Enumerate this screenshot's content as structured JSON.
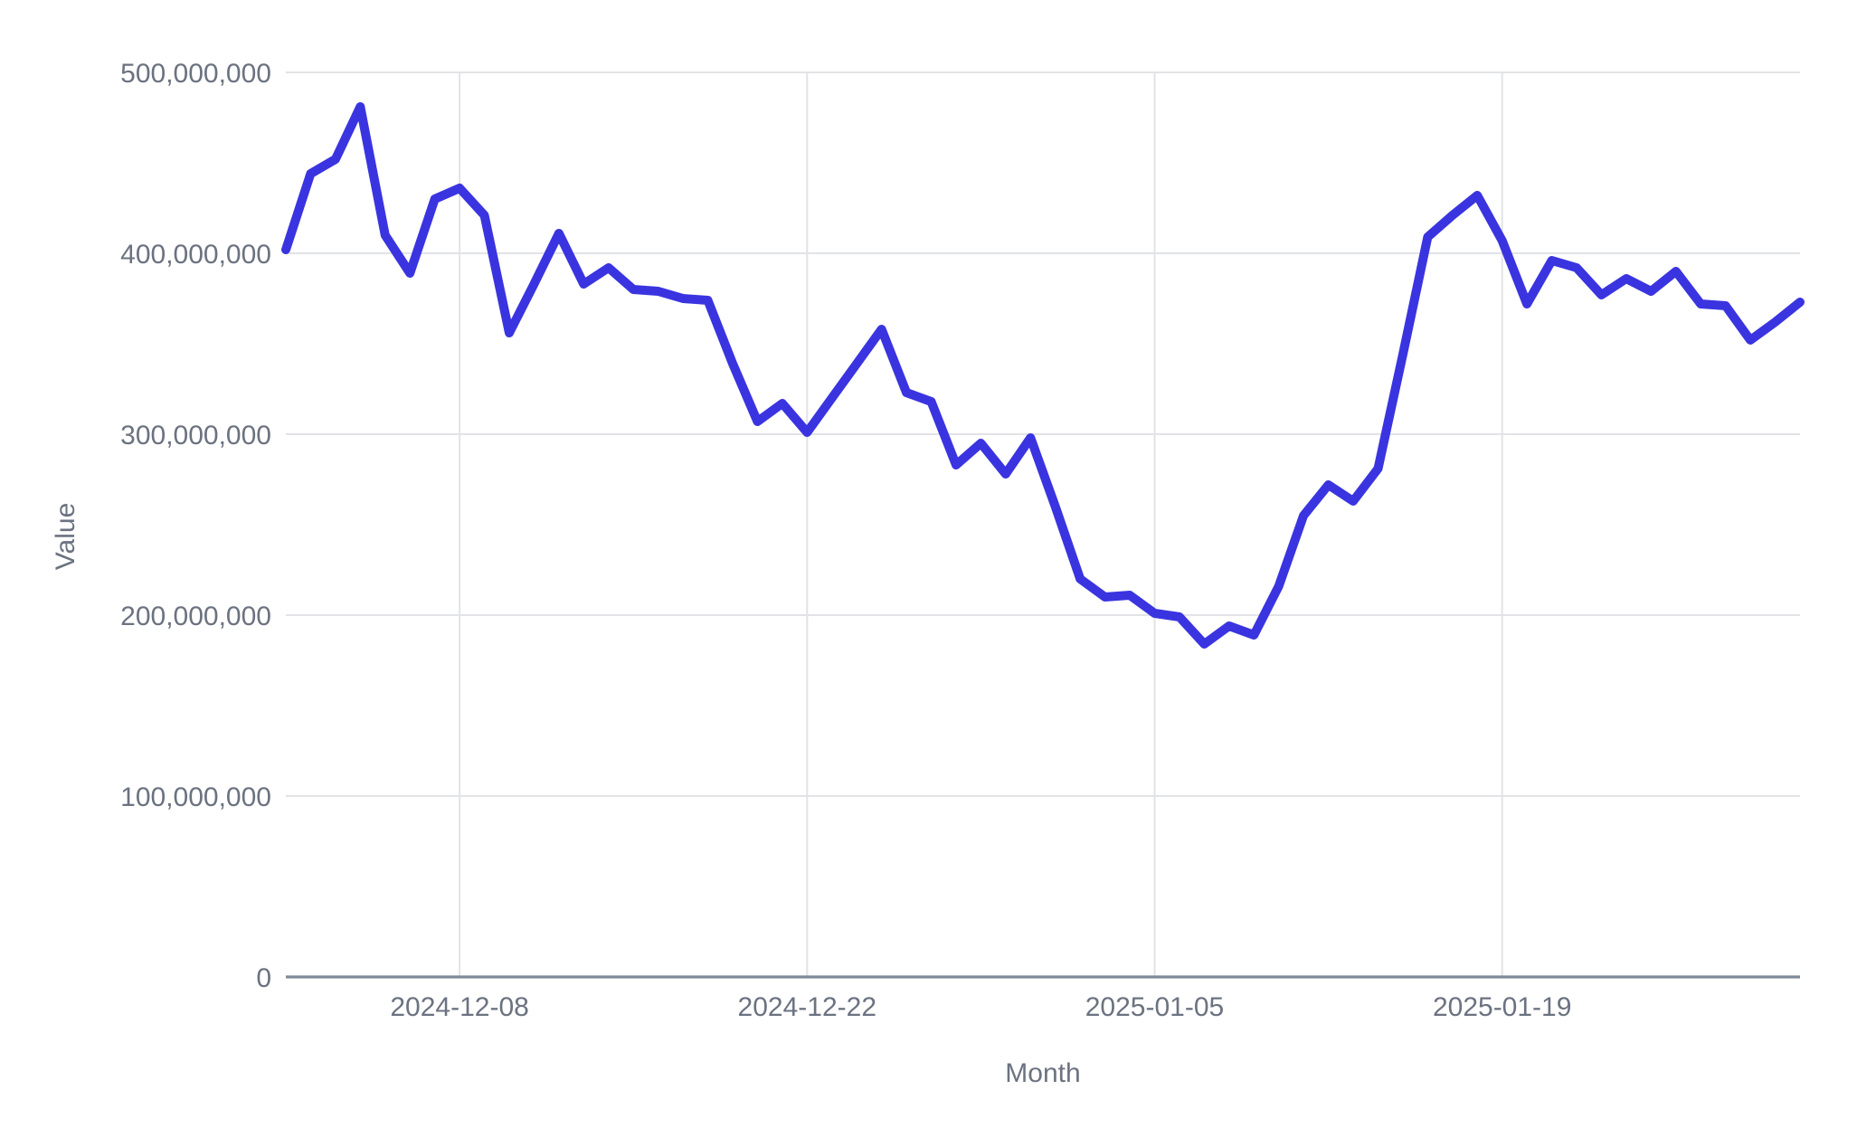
{
  "chart_data": {
    "type": "line",
    "title": "",
    "xlabel": "Month",
    "ylabel": "Value",
    "legend": "none",
    "grid": "on",
    "ylim": [
      0,
      500000000
    ],
    "y_ticks": [
      0,
      100000000,
      200000000,
      300000000,
      400000000,
      500000000
    ],
    "x_tick_labels": [
      "2024-12-08",
      "2024-12-22",
      "2025-01-05",
      "2025-01-19"
    ],
    "x_tick_indices": [
      7,
      21,
      35,
      49
    ],
    "line_color": "#3a34e0",
    "grid_color": "#e2e3e7",
    "axis_color": "#7f8b99",
    "label_color": "#6b7280",
    "x": [
      "2024-12-01",
      "2024-12-02",
      "2024-12-03",
      "2024-12-04",
      "2024-12-05",
      "2024-12-06",
      "2024-12-07",
      "2024-12-08",
      "2024-12-09",
      "2024-12-10",
      "2024-12-11",
      "2024-12-12",
      "2024-12-13",
      "2024-12-14",
      "2024-12-15",
      "2024-12-16",
      "2024-12-17",
      "2024-12-18",
      "2024-12-19",
      "2024-12-20",
      "2024-12-21",
      "2024-12-22",
      "2024-12-23",
      "2024-12-24",
      "2024-12-25",
      "2024-12-26",
      "2024-12-27",
      "2024-12-28",
      "2024-12-29",
      "2024-12-30",
      "2024-12-31",
      "2025-01-01",
      "2025-01-02",
      "2025-01-03",
      "2025-01-04",
      "2025-01-05",
      "2025-01-06",
      "2025-01-07",
      "2025-01-08",
      "2025-01-09",
      "2025-01-10",
      "2025-01-11",
      "2025-01-12",
      "2025-01-13",
      "2025-01-14",
      "2025-01-15",
      "2025-01-16",
      "2025-01-17",
      "2025-01-18",
      "2025-01-19",
      "2025-01-20",
      "2025-01-21",
      "2025-01-22",
      "2025-01-23",
      "2025-01-24",
      "2025-01-25",
      "2025-01-26",
      "2025-01-27",
      "2025-01-28",
      "2025-01-29",
      "2025-01-30",
      "2025-01-31"
    ],
    "values": [
      402000000,
      444000000,
      452000000,
      481000000,
      410000000,
      389000000,
      430000000,
      436000000,
      421000000,
      356000000,
      383000000,
      411000000,
      383000000,
      392000000,
      380000000,
      379000000,
      375000000,
      374000000,
      339000000,
      307000000,
      317000000,
      301000000,
      320000000,
      339000000,
      358000000,
      323000000,
      318000000,
      283000000,
      295000000,
      278000000,
      298000000,
      260000000,
      220000000,
      210000000,
      211000000,
      201000000,
      199000000,
      184000000,
      194000000,
      189000000,
      216000000,
      255000000,
      272000000,
      263000000,
      281000000,
      344000000,
      409000000,
      421000000,
      432000000,
      407000000,
      372000000,
      396000000,
      392000000,
      377000000,
      386000000,
      379000000,
      390000000,
      372000000,
      371000000,
      352000000,
      362000000,
      373000000
    ]
  }
}
